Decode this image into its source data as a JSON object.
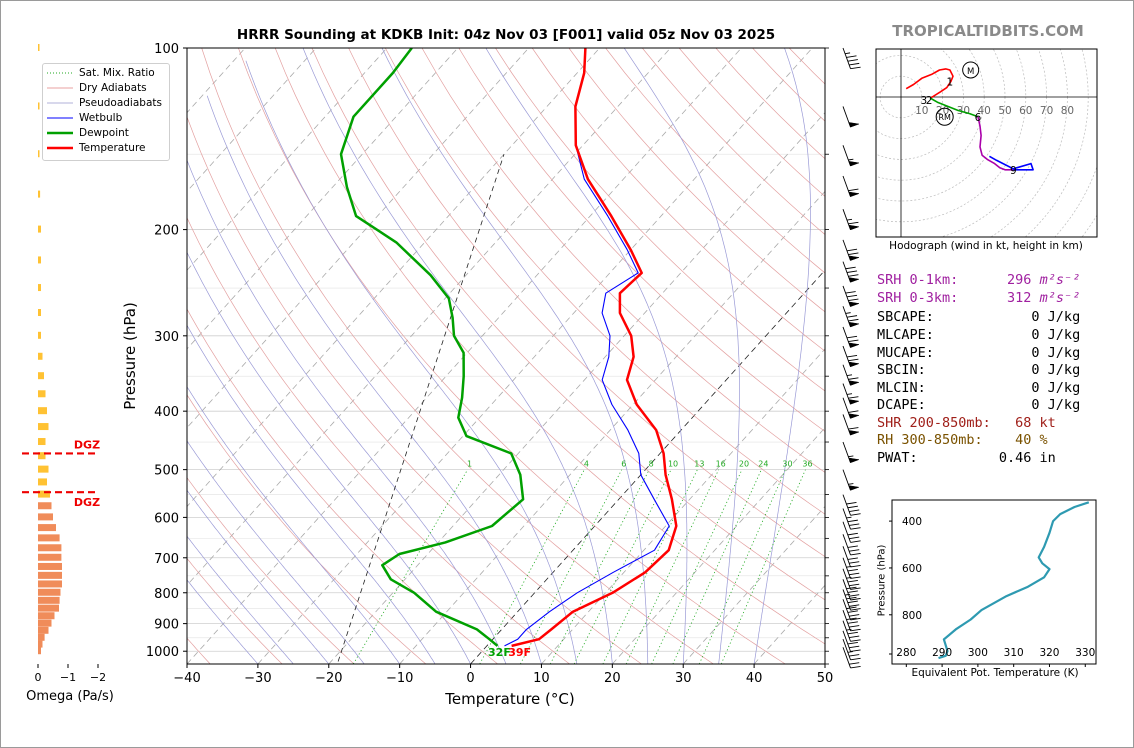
{
  "title": "HRRR Sounding at KDKB Init: 04z Nov 03 [F001] valid 05z Nov 03 2025",
  "brand": "TROPICALTIDBITS.COM",
  "chart_data": [
    {
      "type": "line",
      "name": "skewt",
      "xlabel": "Temperature (°C)",
      "ylabel": "Pressure (hPa)",
      "xlim": [
        -40,
        50
      ],
      "ylim_log_hPa": [
        1050,
        100
      ],
      "x_ticks": [
        -40,
        -30,
        -20,
        -10,
        0,
        10,
        20,
        30,
        40,
        50
      ],
      "x_tick_labels": [
        "−40",
        "−30",
        "−20",
        "−10",
        "0",
        "10",
        "20",
        "30",
        "40",
        "50"
      ],
      "y_ticks": [
        100,
        200,
        300,
        400,
        500,
        600,
        700,
        800,
        900,
        1000
      ],
      "y_tick_labels": [
        "100",
        "200",
        "300",
        "400",
        "500",
        "600",
        "700",
        "800",
        "900",
        "1000"
      ],
      "mixing_ratio_labels": [
        "1",
        "4",
        "6",
        "8",
        "10",
        "13",
        "16",
        "20",
        "24",
        "30",
        "36"
      ],
      "surface_labels": {
        "dewpoint": "32F",
        "temperature": "39F"
      },
      "colors": {
        "temperature": "#ff0000",
        "dewpoint": "#00a000",
        "wetbulb": "#0000ff"
      },
      "series": [
        {
          "name": "Temperature",
          "p": [
            980,
            955,
            920,
            860,
            800,
            740,
            680,
            620,
            560,
            510,
            470,
            430,
            390,
            355,
            325,
            300,
            275,
            255,
            236,
            216,
            190,
            165,
            145,
            125,
            110,
            100
          ],
          "t": [
            3.5,
            6.5,
            7.0,
            7.8,
            11.0,
            13.0,
            13.5,
            11.5,
            7.5,
            3.5,
            0.5,
            -3.5,
            -9.5,
            -14.0,
            -16.0,
            -19.0,
            -23.5,
            -26.0,
            -25.5,
            -30.0,
            -37.0,
            -45.0,
            -51.0,
            -56.0,
            -59.0,
            -62.0
          ]
        },
        {
          "name": "Dewpoint",
          "p": [
            980,
            955,
            920,
            860,
            800,
            760,
            720,
            690,
            660,
            620,
            560,
            510,
            470,
            440,
            410,
            380,
            350,
            320,
            300,
            280,
            260,
            238,
            210,
            190,
            170,
            150,
            130,
            110,
            100
          ],
          "t": [
            1.5,
            -0.5,
            -3.5,
            -11.5,
            -17.0,
            -22.0,
            -25.0,
            -24.0,
            -19.0,
            -14.5,
            -13.5,
            -17.0,
            -21.0,
            -29.5,
            -33.0,
            -35.0,
            -37.5,
            -40.5,
            -44.0,
            -46.5,
            -49.5,
            -55.0,
            -64.0,
            -73.0,
            -78.0,
            -83.0,
            -86.0,
            -86.0,
            -86.5
          ]
        },
        {
          "name": "Wetbulb",
          "p": [
            980,
            955,
            920,
            860,
            800,
            740,
            680,
            620,
            560,
            510,
            470,
            430,
            390,
            355,
            325,
            300,
            275,
            255,
            236,
            216,
            190,
            165,
            145,
            125,
            110,
            100
          ],
          "t": [
            2.5,
            3.5,
            3.5,
            4.5,
            6.0,
            8.5,
            11.5,
            10.5,
            5.0,
            0.0,
            -3.0,
            -7.5,
            -13.0,
            -17.5,
            -19.5,
            -22.0,
            -26.0,
            -28.0,
            -26.0,
            -30.5,
            -37.5,
            -45.5,
            -51.0,
            -56.0,
            -59.0,
            -62.0
          ]
        }
      ]
    },
    {
      "type": "bar",
      "name": "omega",
      "xlabel": "Omega (Pa/s)",
      "x_ticks": [
        0,
        -1,
        -2
      ],
      "x_tick_labels": [
        "0",
        "−1",
        "−2"
      ],
      "dgz_label": "DGZ",
      "dgz_levels_hPa": [
        470,
        545
      ],
      "levels_hPa": [
        1000,
        975,
        950,
        925,
        900,
        875,
        850,
        825,
        800,
        775,
        750,
        725,
        700,
        675,
        650,
        625,
        600,
        575,
        550,
        525,
        500,
        475,
        450,
        425,
        400,
        375,
        350,
        325,
        300,
        275,
        250,
        225,
        200,
        175,
        150,
        125,
        100
      ],
      "values": [
        -0.1,
        -0.15,
        -0.22,
        -0.35,
        -0.45,
        -0.55,
        -0.7,
        -0.72,
        -0.75,
        -0.8,
        -0.8,
        -0.8,
        -0.78,
        -0.78,
        -0.72,
        -0.6,
        -0.5,
        -0.45,
        -0.4,
        -0.3,
        -0.35,
        -0.25,
        -0.25,
        -0.35,
        -0.3,
        -0.25,
        -0.2,
        -0.15,
        -0.1,
        -0.1,
        -0.1,
        -0.1,
        -0.1,
        -0.07,
        -0.05,
        -0.05,
        -0.05
      ]
    },
    {
      "type": "line",
      "name": "hodograph",
      "title": "Hodograph (wind in kt, height in km)",
      "ring_labels": [
        "10",
        "20",
        "30",
        "40",
        "50",
        "60",
        "70",
        "80"
      ],
      "markers": {
        "storm_motion": "M",
        "right_mover": "RM"
      },
      "height_labels": [
        {
          "text": "1",
          "u": 47,
          "v": 15
        },
        {
          "text": "3",
          "u": 22,
          "v": -3
        },
        {
          "text": "2",
          "u": 27,
          "v": -3
        },
        {
          "text": "6",
          "u": 74,
          "v": -19
        },
        {
          "text": "9",
          "u": 108,
          "v": -70
        }
      ],
      "colors": [
        "#ff0000",
        "#00a000",
        "#aa00aa",
        "#0000ff"
      ],
      "series": [
        {
          "name": "0-3 km",
          "u": [
            5,
            12,
            20,
            30,
            37,
            43,
            47,
            50,
            48,
            44,
            38,
            30,
            28
          ],
          "v": [
            8,
            12,
            18,
            22,
            26,
            27,
            26,
            20,
            15,
            9,
            5,
            0,
            -1
          ]
        },
        {
          "name": "3-6 km",
          "u": [
            28,
            35,
            45,
            55,
            66,
            74
          ],
          "v": [
            -1,
            -5,
            -9,
            -13,
            -16,
            -19
          ]
        },
        {
          "name": "6-9 km",
          "u": [
            74,
            76,
            77,
            76,
            78,
            83,
            90,
            95,
            100,
            108
          ],
          "v": [
            -19,
            -28,
            -37,
            -48,
            -56,
            -60,
            -64,
            -68,
            -70,
            -70
          ]
        },
        {
          "name": "9+ km",
          "u": [
            108,
            118,
            127,
            125,
            108,
            92,
            85
          ],
          "v": [
            -70,
            -70,
            -70,
            -64,
            -69,
            -61,
            -57
          ]
        }
      ]
    },
    {
      "type": "line",
      "name": "theta-e",
      "xlabel": "Equivalent Pot. Temperature (K)",
      "ylabel": "Pressure (hPa)",
      "xlim": [
        276,
        333
      ],
      "x_ticks": [
        280,
        290,
        300,
        310,
        320,
        330
      ],
      "x_tick_labels": [
        "280",
        "290",
        "300",
        "310",
        "320",
        "330"
      ],
      "y_ticks": [
        400,
        600,
        800
      ],
      "y_tick_labels": [
        "400",
        "600",
        "800"
      ],
      "bottom_tick_label": "1000",
      "colors": [
        "#2e9ab1"
      ],
      "series": [
        {
          "name": "theta-e",
          "p": [
            985,
            975,
            955,
            905,
            860,
            820,
            780,
            720,
            680,
            640,
            605,
            580,
            555,
            510,
            450,
            400,
            370,
            340,
            320
          ],
          "t": [
            289.0,
            291.0,
            291.5,
            290.5,
            294.0,
            298.0,
            301.0,
            308.0,
            314.0,
            318.5,
            320.0,
            318.0,
            317.0,
            318.5,
            320.0,
            321.0,
            323.0,
            327.0,
            331.0
          ]
        }
      ]
    }
  ],
  "barbs": {
    "p": [
      985,
      955,
      925,
      890,
      855,
      820,
      790,
      760,
      730,
      700,
      670,
      640,
      610,
      580,
      550,
      500,
      450,
      405,
      380,
      360,
      335,
      312,
      290,
      268,
      248,
      226,
      208,
      185,
      163,
      145,
      125,
      100
    ],
    "speed_kt": [
      20,
      25,
      30,
      35,
      40,
      40,
      45,
      40,
      35,
      35,
      30,
      30,
      30,
      35,
      40,
      55,
      55,
      60,
      60,
      65,
      65,
      70,
      70,
      75,
      80,
      80,
      70,
      65,
      60,
      55,
      50,
      45
    ]
  },
  "indices": {
    "srh_color": "#a020a0",
    "shr_color": "#a0201a",
    "rh_color": "#7a5200",
    "srh01": "SRH 0-1km:      296",
    "srh03": "SRH 0-3km:      312",
    "srh_unit": "m²s⁻²",
    "sbcape": "SBCAPE:            0 J/kg",
    "mlcape": "MLCAPE:            0 J/kg",
    "mucape": "MUCAPE:            0 J/kg",
    "sbcin": "SBCIN:             0 J/kg",
    "mlcin": "MLCIN:             0 J/kg",
    "dcape": "DCAPE:             0 J/kg",
    "shr": "SHR 200-850mb:   68 kt",
    "rh": "RH 300-850mb:    40 %",
    "pwat": "PWAT:          0.46 in"
  },
  "legend": [
    {
      "label": "Sat. Mix. Ratio",
      "color": "#22aa22",
      "style": "dotted"
    },
    {
      "label": "Dry Adiabats",
      "color": "#e08080",
      "style": "solid-thin"
    },
    {
      "label": "Pseudoadiabats",
      "color": "#9999cc",
      "style": "solid-thin"
    },
    {
      "label": "Wetbulb",
      "color": "#0000ff",
      "style": "solid"
    },
    {
      "label": "Dewpoint",
      "color": "#00a000",
      "style": "thick"
    },
    {
      "label": "Temperature",
      "color": "#ff0000",
      "style": "thick"
    }
  ]
}
